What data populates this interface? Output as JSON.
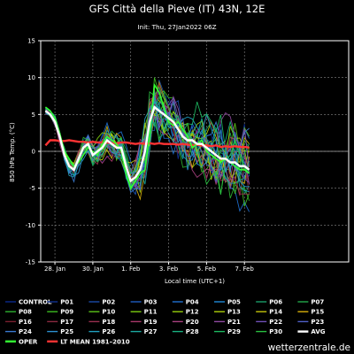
{
  "chart_data": {
    "type": "line",
    "title": "GFS Città della Pieve (IT) 43N, 12E",
    "subtitle": "Init: Thu, 27Jan2022 06Z",
    "xlabel": "Local time (UTC+1)",
    "ylabel": "850 hPa Temp. (°C)",
    "ylim": [
      -15,
      15
    ],
    "xlim": [
      0,
      16.25
    ],
    "y_ticks": [
      15,
      10,
      5,
      0,
      -5,
      -10,
      -15
    ],
    "x_ticks": [
      {
        "pos": 0.75,
        "label": "28. Jan"
      },
      {
        "pos": 2.75,
        "label": "30. Jan"
      },
      {
        "pos": 4.75,
        "label": "1. Feb"
      },
      {
        "pos": 6.75,
        "label": "3. Feb"
      },
      {
        "pos": 8.75,
        "label": "5. Feb"
      },
      {
        "pos": 10.75,
        "label": "7. Feb"
      }
    ],
    "grid": true,
    "x": [
      0.25,
      0.5,
      0.75,
      1.0,
      1.25,
      1.5,
      1.75,
      2.0,
      2.25,
      2.5,
      2.75,
      3.0,
      3.25,
      3.5,
      3.75,
      4.0,
      4.25,
      4.5,
      4.75,
      5.0,
      5.25,
      5.5,
      5.75,
      6.0,
      6.25,
      6.5,
      6.75,
      7.0,
      7.25,
      7.5,
      7.75,
      8.0,
      8.25,
      8.5,
      8.75,
      9.0,
      9.25,
      9.5,
      9.75,
      10.0,
      10.25,
      10.5,
      10.75,
      11.0
    ],
    "avg": [
      5.5,
      5.0,
      4.0,
      2.0,
      -0.5,
      -2.0,
      -2.5,
      -1.0,
      0.5,
      1.0,
      -0.5,
      0.0,
      0.5,
      1.5,
      1.0,
      0.5,
      0.5,
      -2.0,
      -4.0,
      -3.5,
      -2.5,
      0.0,
      4.0,
      6.0,
      5.5,
      5.0,
      4.5,
      4.0,
      3.0,
      2.0,
      1.5,
      1.5,
      1.0,
      1.0,
      0.5,
      0.0,
      -0.5,
      -1.0,
      -1.0,
      -1.5,
      -1.5,
      -2.0,
      -2.0,
      -2.5
    ],
    "lt_mean": [
      0.8,
      1.5,
      1.5,
      1.4,
      1.4,
      1.5,
      1.4,
      1.3,
      1.3,
      1.2,
      1.3,
      1.2,
      1.2,
      1.2,
      1.1,
      1.1,
      1.2,
      1.2,
      1.1,
      1.0,
      1.1,
      1.0,
      1.1,
      1.0,
      1.1,
      1.0,
      1.0,
      1.0,
      0.9,
      1.0,
      0.9,
      0.8,
      0.9,
      0.8,
      0.8,
      0.7,
      0.8,
      0.6,
      0.7,
      0.6,
      0.7,
      0.6,
      0.6,
      0.5
    ],
    "oper": [
      6.0,
      5.5,
      4.5,
      2.5,
      0.0,
      -1.0,
      -2.0,
      -1.5,
      -0.5,
      0.5,
      0.0,
      -0.5,
      1.0,
      2.0,
      1.5,
      1.0,
      0.0,
      -3.0,
      -5.0,
      -4.0,
      -3.0,
      -2.5,
      2.0,
      9.0,
      8.0,
      6.0,
      4.0,
      3.5,
      4.0,
      3.0,
      2.0,
      0.5,
      1.0,
      1.5,
      0.0,
      -0.5,
      -1.0,
      -1.5,
      -1.0,
      -1.5,
      -2.0,
      -2.5,
      -2.5,
      -3.0
    ],
    "legend": [
      {
        "name": "CONTROL",
        "color": "#0a2a8c"
      },
      {
        "name": "P01",
        "color": "#10308f"
      },
      {
        "name": "P02",
        "color": "#1a4aa8"
      },
      {
        "name": "P03",
        "color": "#1e5cc0"
      },
      {
        "name": "P04",
        "color": "#1f6fd0"
      },
      {
        "name": "P05",
        "color": "#1f8ad8"
      },
      {
        "name": "P06",
        "color": "#1a9d6a"
      },
      {
        "name": "P07",
        "color": "#22a84a"
      },
      {
        "name": "P08",
        "color": "#2cb030"
      },
      {
        "name": "P09",
        "color": "#3cbb20"
      },
      {
        "name": "P10",
        "color": "#5cc418"
      },
      {
        "name": "P11",
        "color": "#7acb10"
      },
      {
        "name": "P12",
        "color": "#96cf0c"
      },
      {
        "name": "P13",
        "color": "#aecf0a"
      },
      {
        "name": "P14",
        "color": "#c4c40a"
      },
      {
        "name": "P15",
        "color": "#d8b00a"
      },
      {
        "name": "P16",
        "color": "#7a2030"
      },
      {
        "name": "P17",
        "color": "#8a2a40"
      },
      {
        "name": "P18",
        "color": "#9a3050"
      },
      {
        "name": "P19",
        "color": "#a8386a"
      },
      {
        "name": "P20",
        "color": "#a84080"
      },
      {
        "name": "P21",
        "color": "#904aa0"
      },
      {
        "name": "P22",
        "color": "#7050b8"
      },
      {
        "name": "P23",
        "color": "#5060c8"
      },
      {
        "name": "P24",
        "color": "#3a7ad0"
      },
      {
        "name": "P25",
        "color": "#2c90d0"
      },
      {
        "name": "P26",
        "color": "#20a0c0"
      },
      {
        "name": "P27",
        "color": "#1aa8a0"
      },
      {
        "name": "P28",
        "color": "#18b080"
      },
      {
        "name": "P29",
        "color": "#1cb860"
      },
      {
        "name": "P30",
        "color": "#28c040"
      },
      {
        "name": "AVG",
        "color": "#ffffff"
      },
      {
        "name": "OPER",
        "color": "#33ff33"
      },
      {
        "name": "LT MEAN 1981–2010",
        "color": "#ff3333"
      }
    ]
  },
  "watermark": "wetterzentrale.de"
}
